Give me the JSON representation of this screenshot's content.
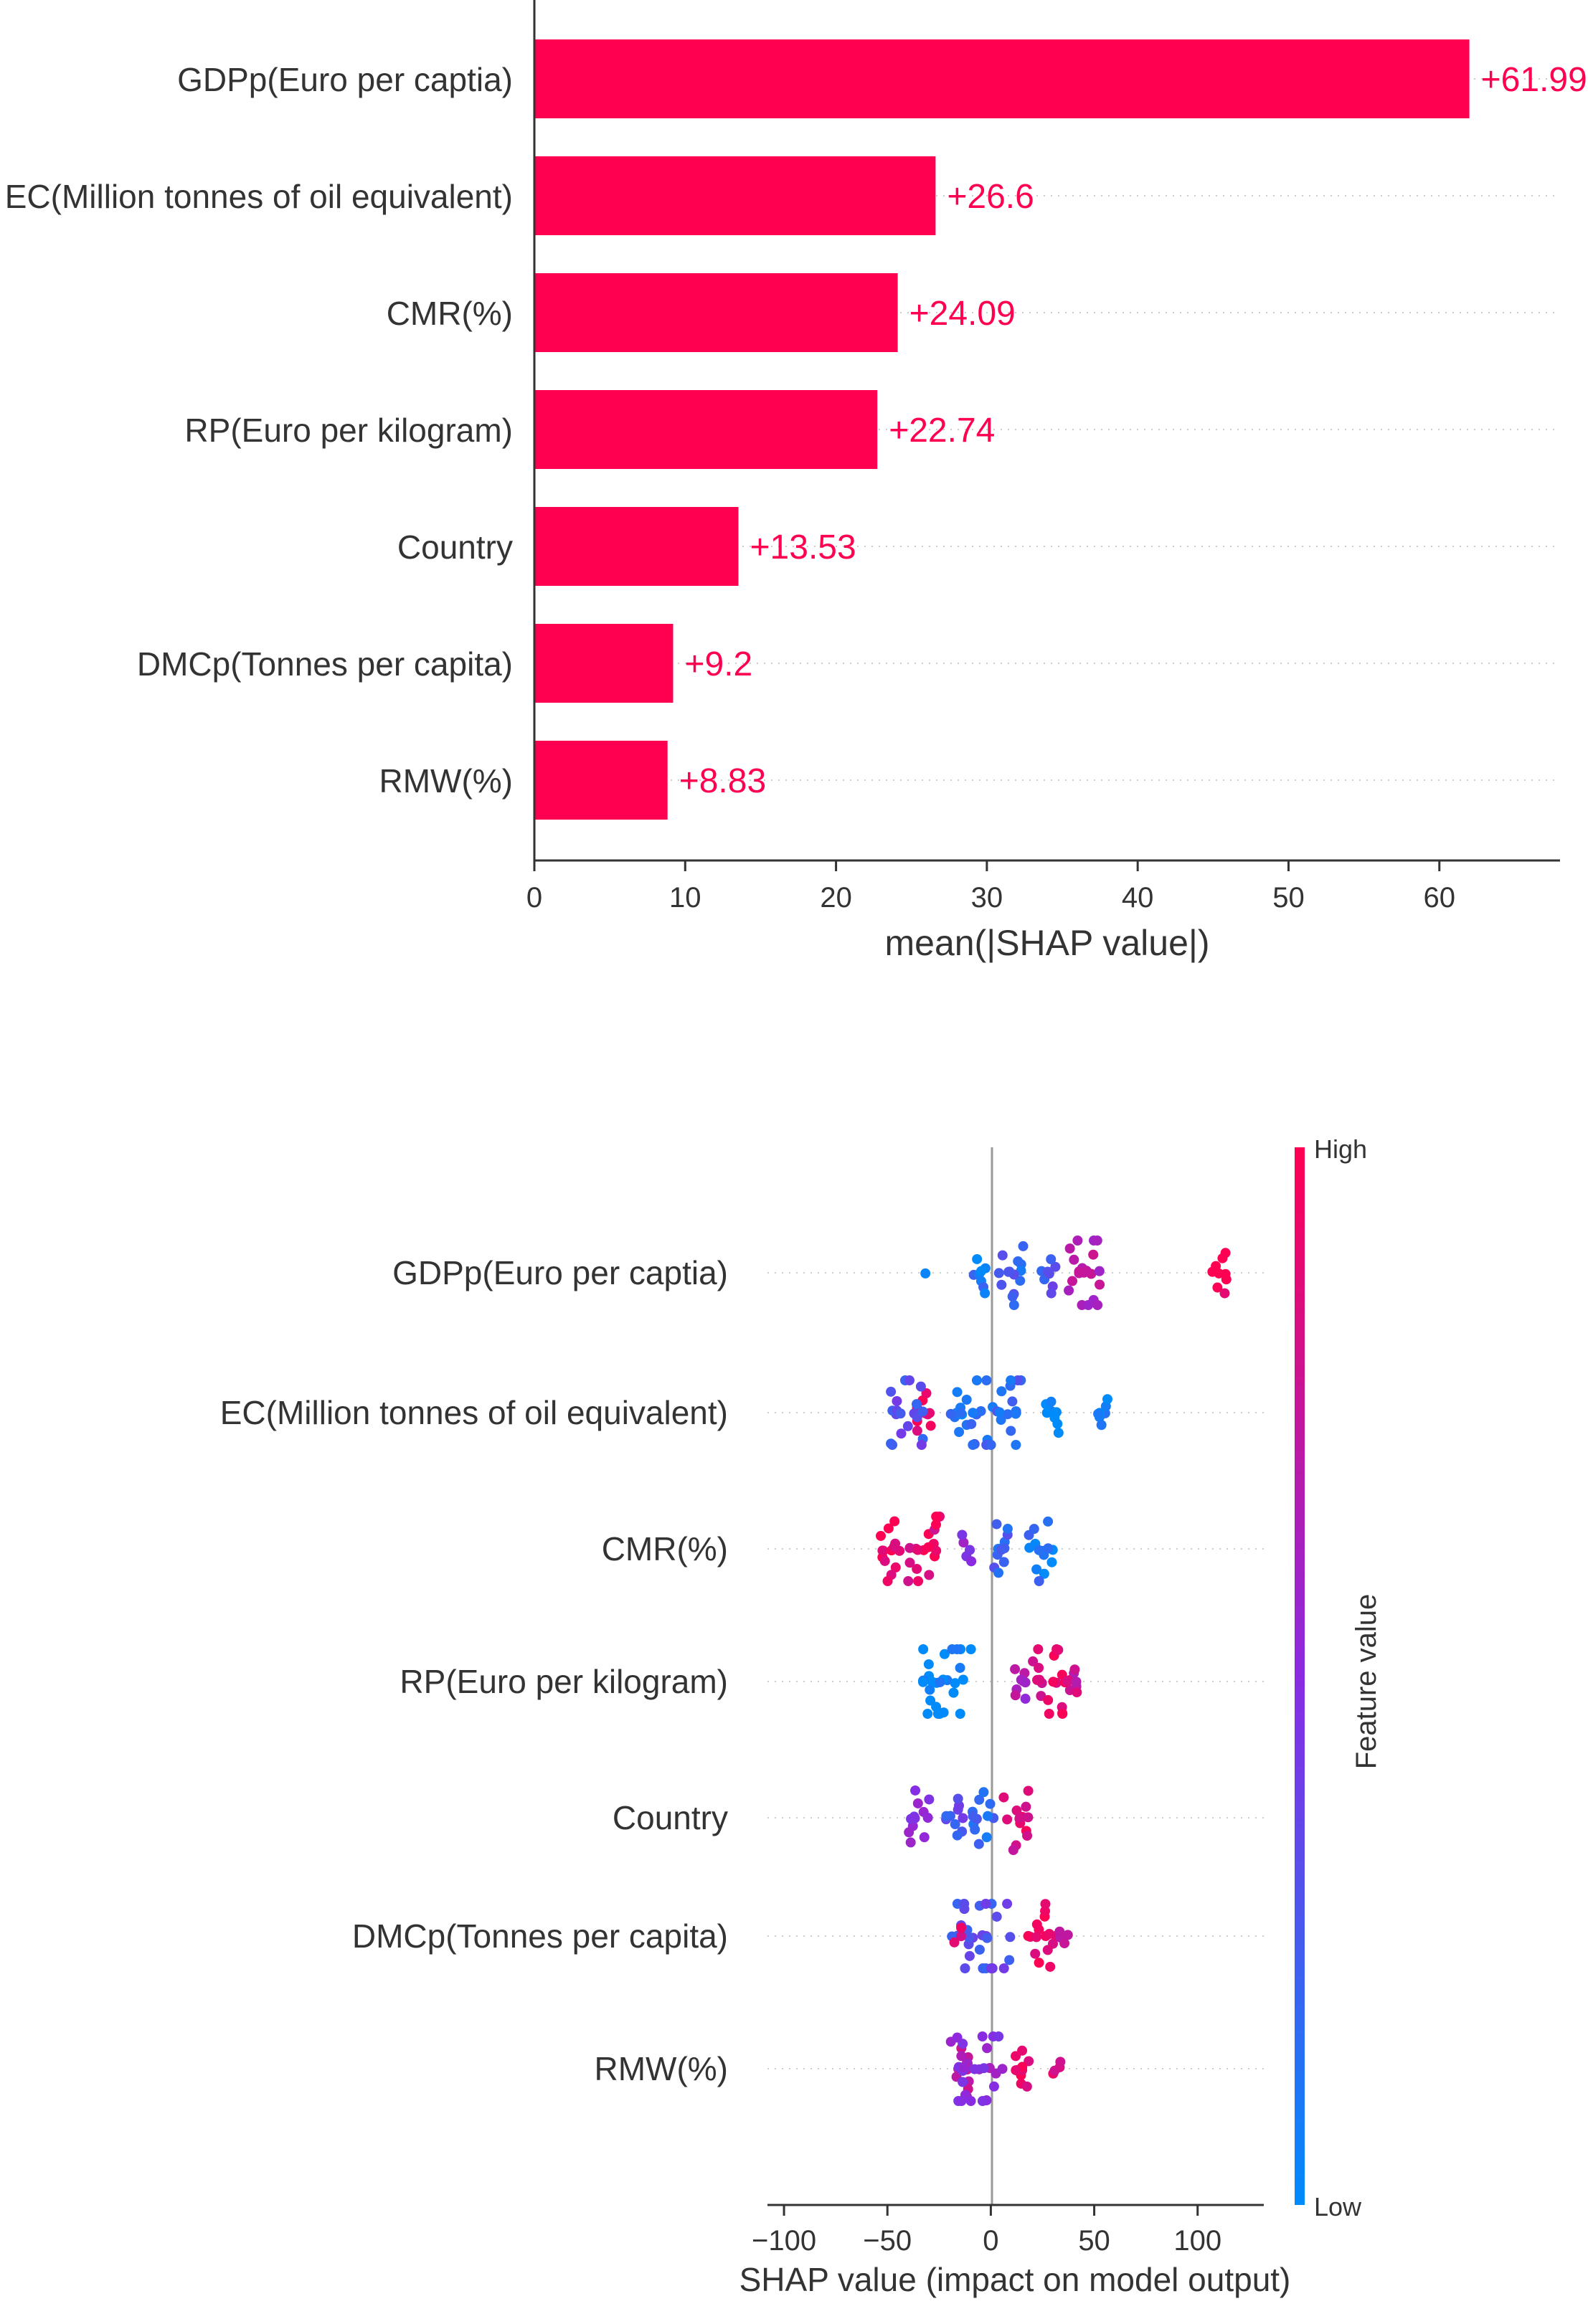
{
  "colors": {
    "bar": "#ff0051",
    "label_text": "#ff0051",
    "axis": "#333333",
    "grid_dots": "#cccccc",
    "high": "#ff0052",
    "low": "#008bfb"
  },
  "chart_data": [
    {
      "type": "bar",
      "orientation": "horizontal",
      "categories": [
        "GDPp(Euro per captia)",
        "EC(Million tonnes of oil equivalent)",
        "CMR(%)",
        "RP(Euro per kilogram)",
        "Country",
        "DMCp(Tonnes per capita)",
        "RMW(%)"
      ],
      "values": [
        61.99,
        26.6,
        24.09,
        22.74,
        13.53,
        9.2,
        8.83
      ],
      "value_labels": [
        "+61.99",
        "+26.6",
        "+24.09",
        "+22.74",
        "+13.53",
        "+9.2",
        "+8.83"
      ],
      "xlabel": "mean(|SHAP value|)",
      "xlim": [
        0,
        68
      ],
      "xticks": [
        0,
        10,
        20,
        30,
        40,
        50,
        60
      ]
    },
    {
      "type": "scatter",
      "subtype": "beeswarm",
      "features": [
        "GDPp(Euro per captia)",
        "EC(Million tonnes of oil equivalent)",
        "CMR(%)",
        "RP(Euro per kilogram)",
        "Country",
        "DMCp(Tonnes per capita)",
        "RMW(%)"
      ],
      "xlabel": "SHAP value (impact on model output)",
      "xlim": [
        -108,
        132
      ],
      "xticks": [
        -100,
        -50,
        0,
        50,
        100
      ],
      "xtick_labels": [
        "−100",
        "−50",
        "0",
        "50",
        "100"
      ],
      "colorbar": {
        "label": "Feature value",
        "high_label": "High",
        "low_label": "Low"
      },
      "clusters": [
        [
          [
            -29,
            0.0,
            1
          ],
          [
            -5,
            0.1,
            8
          ],
          [
            10,
            0.2,
            14
          ],
          [
            28,
            0.3,
            8
          ],
          [
            44,
            0.7,
            22
          ],
          [
            110,
            1.0,
            9
          ]
        ],
        [
          [
            -32,
            0.9,
            10
          ],
          [
            -40,
            0.3,
            20
          ],
          [
            -15,
            0.1,
            10
          ],
          [
            3,
            0.2,
            28
          ],
          [
            30,
            0.0,
            8
          ],
          [
            55,
            0.05,
            7
          ]
        ],
        [
          [
            -48,
            0.95,
            14
          ],
          [
            -32,
            0.9,
            18
          ],
          [
            -12,
            0.5,
            6
          ],
          [
            5,
            0.2,
            12
          ],
          [
            24,
            0.1,
            14
          ]
        ],
        [
          [
            -22,
            0.0,
            28
          ],
          [
            15,
            0.65,
            8
          ],
          [
            30,
            0.9,
            22
          ],
          [
            40,
            0.75,
            6
          ]
        ],
        [
          [
            -35,
            0.5,
            12
          ],
          [
            -18,
            0.3,
            10
          ],
          [
            -4,
            0.2,
            12
          ],
          [
            12,
            0.85,
            14
          ]
        ],
        [
          [
            -5,
            0.3,
            32
          ],
          [
            -15,
            0.85,
            3
          ],
          [
            25,
            0.95,
            16
          ],
          [
            35,
            0.8,
            4
          ]
        ],
        [
          [
            -15,
            0.7,
            12
          ],
          [
            -5,
            0.55,
            26
          ],
          [
            15,
            0.9,
            10
          ],
          [
            33,
            0.85,
            4
          ]
        ]
      ]
    }
  ]
}
